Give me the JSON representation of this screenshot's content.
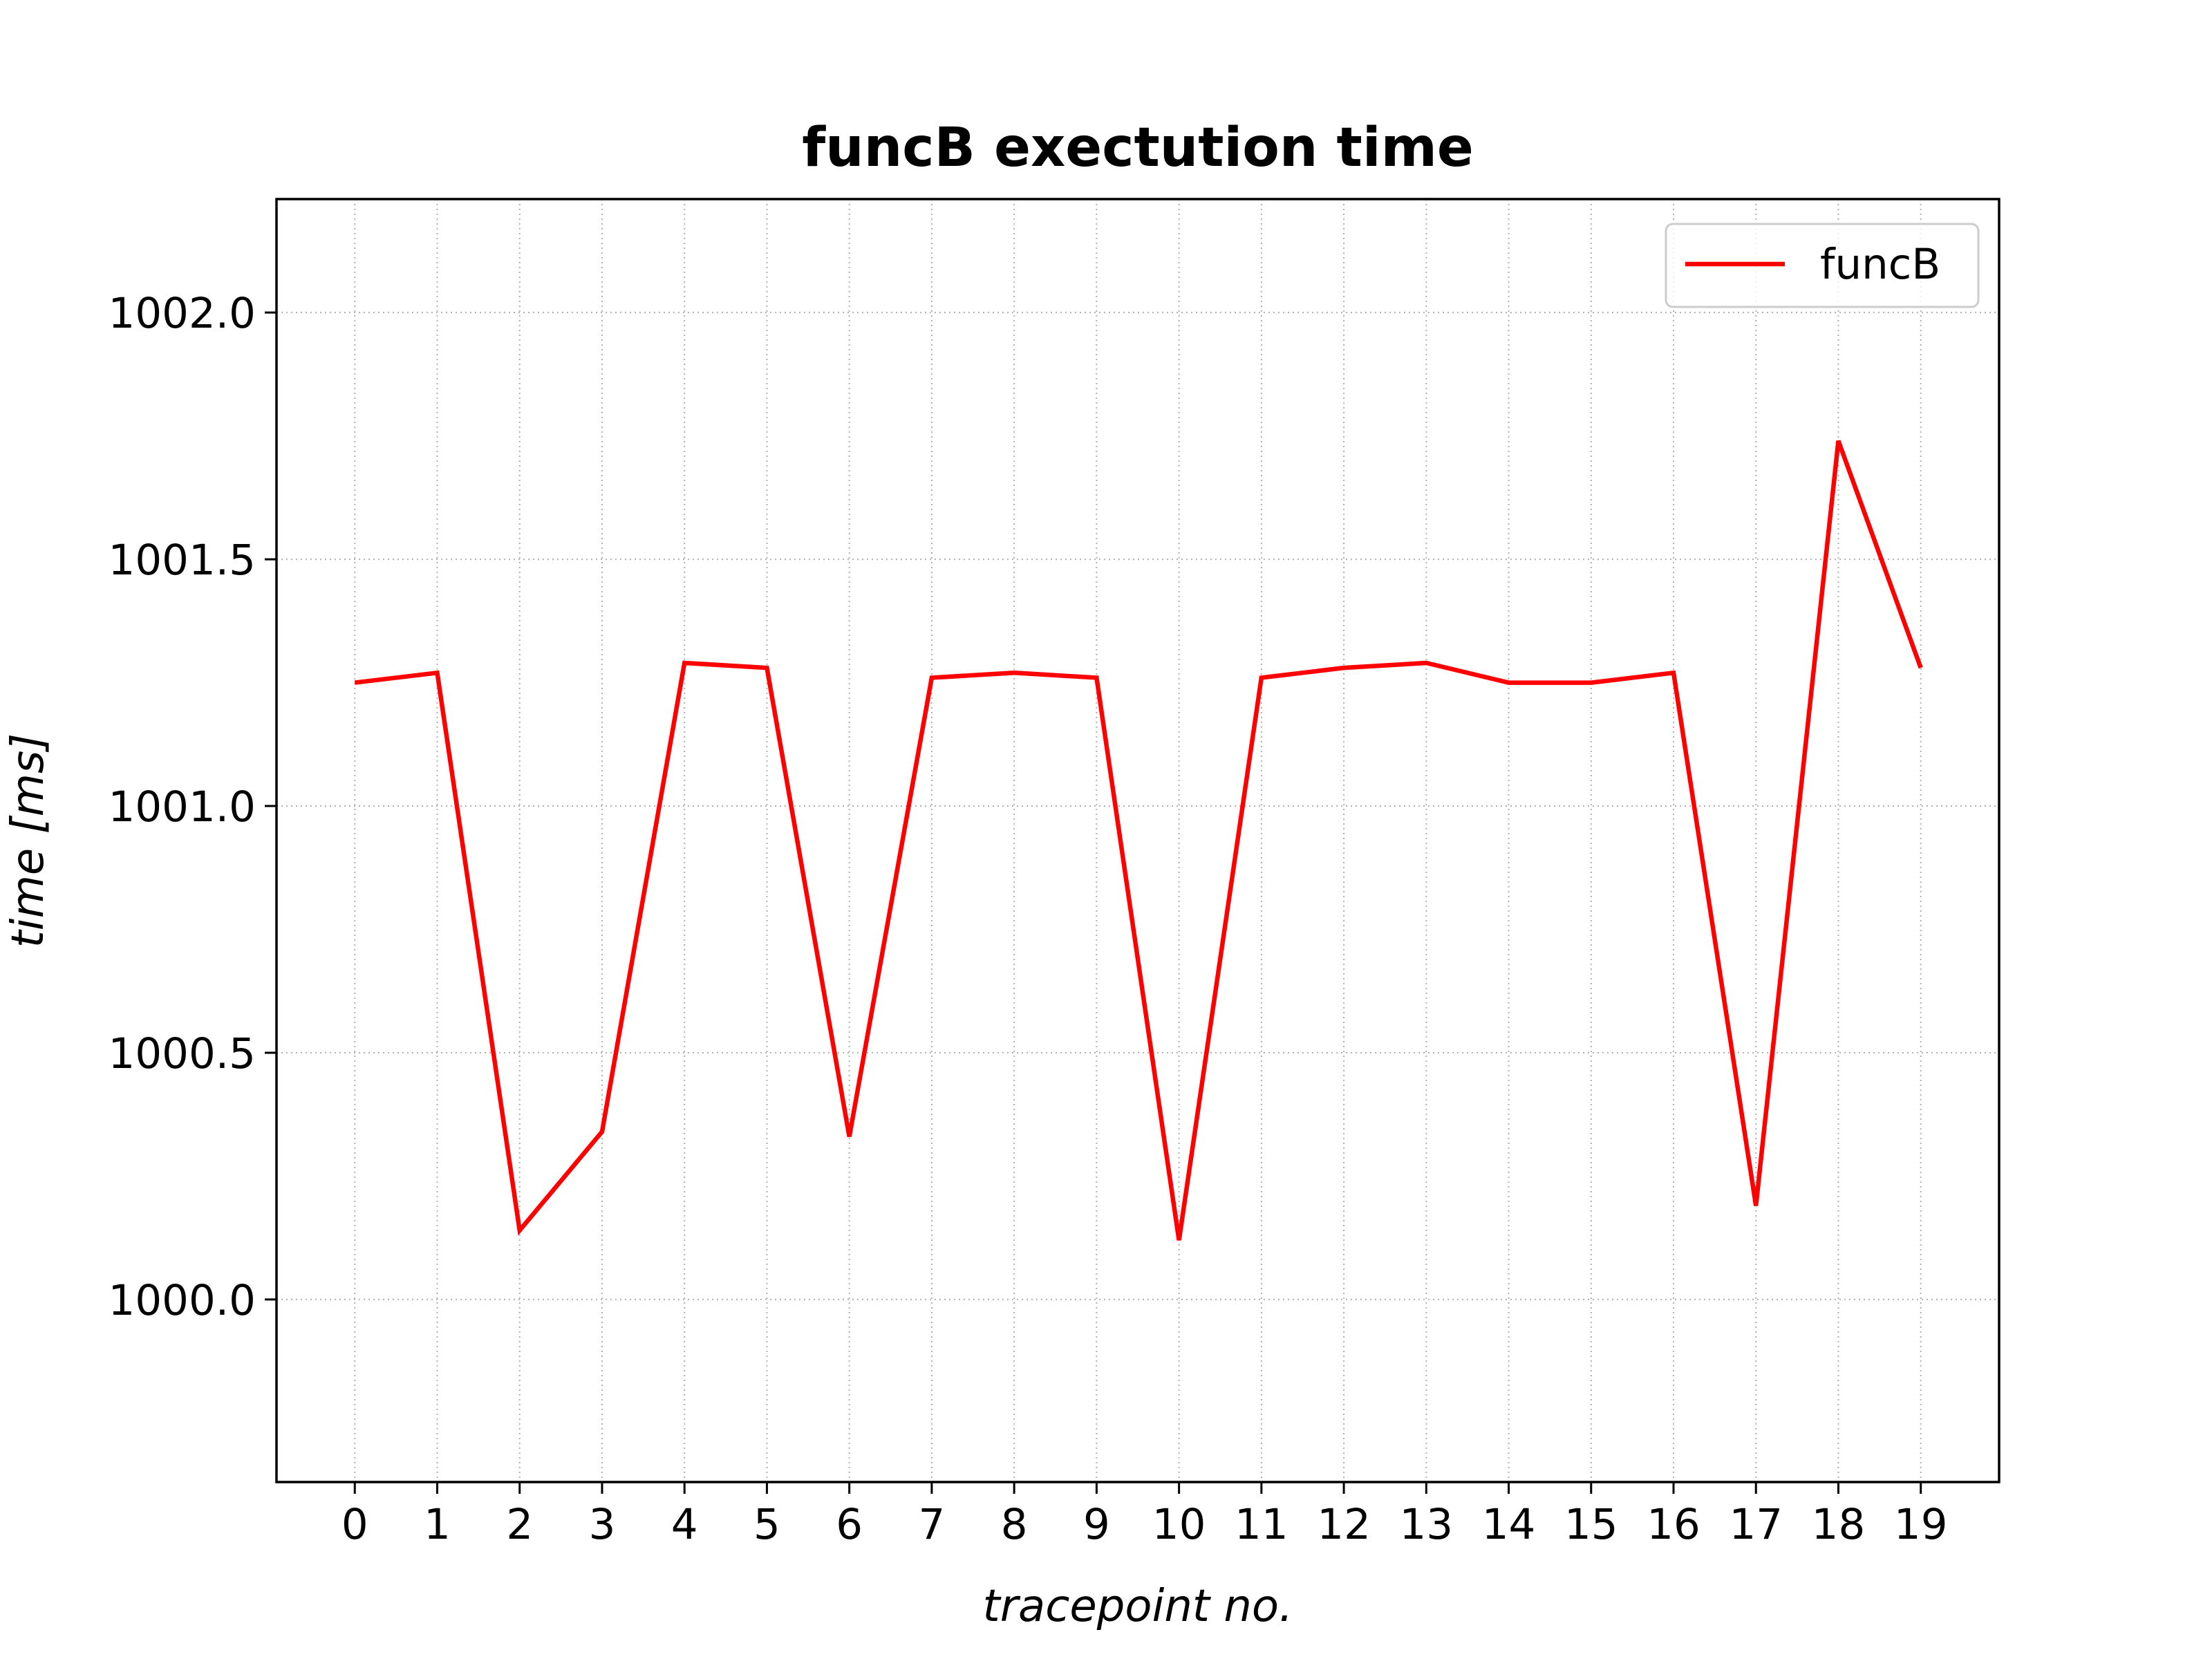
{
  "chart_data": {
    "type": "line",
    "title": "funcB exectution time",
    "xlabel": "tracepoint no.",
    "ylabel": "time [ms]",
    "x": [
      0,
      1,
      2,
      3,
      4,
      5,
      6,
      7,
      8,
      9,
      10,
      11,
      12,
      13,
      14,
      15,
      16,
      17,
      18,
      19
    ],
    "x_ticks": [
      "0",
      "1",
      "2",
      "3",
      "4",
      "5",
      "6",
      "7",
      "8",
      "9",
      "10",
      "11",
      "12",
      "13",
      "14",
      "15",
      "16",
      "17",
      "18",
      "19"
    ],
    "y_ticks": [
      "1000.0",
      "1000.5",
      "1001.0",
      "1001.5",
      "1002.0"
    ],
    "y_tick_values": [
      1000.0,
      1000.5,
      1001.0,
      1001.5,
      1002.0
    ],
    "xlim": [
      -0.95,
      19.95
    ],
    "ylim": [
      999.63,
      1002.23
    ],
    "series": [
      {
        "name": "funcB",
        "color": "#ff0000",
        "values": [
          1001.25,
          1001.27,
          1000.14,
          1000.34,
          1001.29,
          1001.28,
          1000.33,
          1001.26,
          1001.27,
          1001.26,
          1000.12,
          1001.26,
          1001.28,
          1001.29,
          1001.25,
          1001.25,
          1001.27,
          1000.19,
          1001.74,
          1001.28
        ]
      }
    ],
    "grid": true,
    "grid_style": "dotted",
    "legend_position": "top-right"
  }
}
